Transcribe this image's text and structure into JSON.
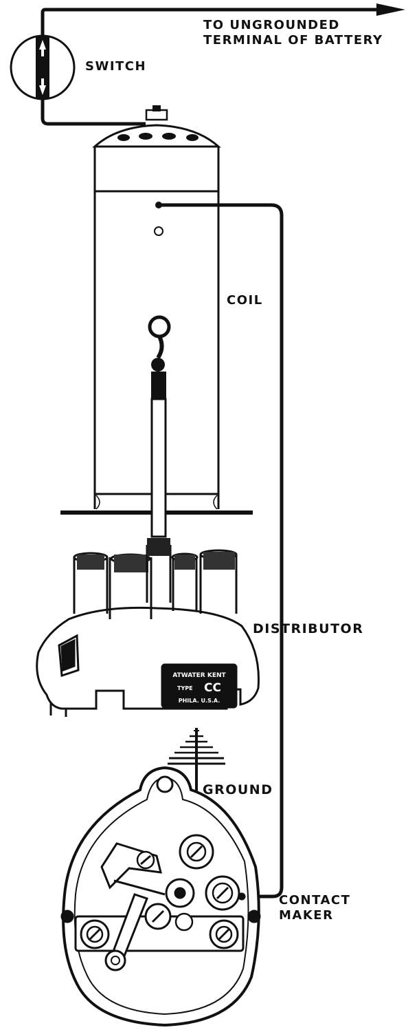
{
  "labels": {
    "battery_line1": "TO UNGROUNDED",
    "battery_line2": "TERMINAL OF BATTERY",
    "switch": "SWITCH",
    "coil": "COIL",
    "distributor": "DISTRIBUTOR",
    "ground": "GROUND",
    "contact_line1": "CONTACT",
    "contact_line2": "MAKER"
  },
  "nameplate": {
    "line1": "ATWATER KENT",
    "line2_prefix": "TYPE",
    "line2_model": "CC",
    "line3": "PHILA. U.S.A."
  },
  "colors": {
    "ink": "#111111",
    "paper": "#ffffff"
  }
}
